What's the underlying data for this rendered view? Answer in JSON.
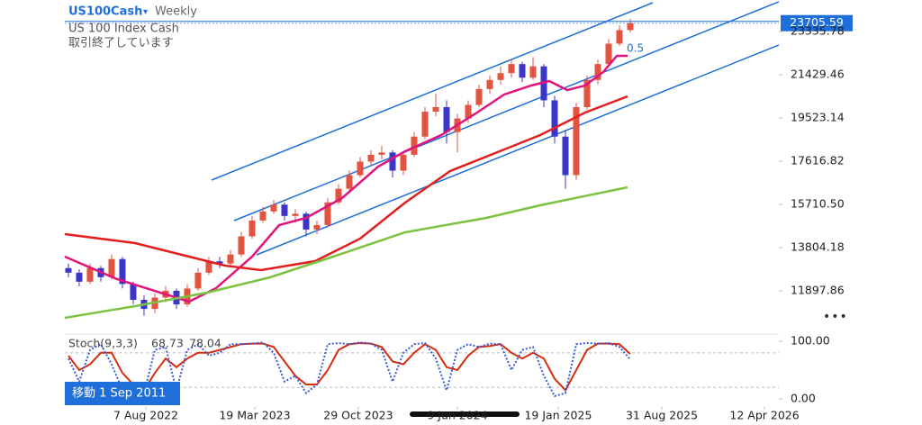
{
  "chart_data": {
    "type": "candlestick",
    "symbol": "US100Cash",
    "interval": "Weekly",
    "subtitle": "US 100 Index Cash",
    "status": "取引終了しています",
    "goto_label": "移動 1 Sep 2011",
    "channel_label": "0.5",
    "up_color": "#e2543f",
    "down_color": "#3b35c8",
    "last_price": 23705.59,
    "last_price_color": "#1e6fd9",
    "xlim": [
      -0.33,
      65.75
    ],
    "xticks": [
      {
        "value": 7.17,
        "label": "7 Aug 2022"
      },
      {
        "value": 17.25,
        "label": "19 Mar 2023"
      },
      {
        "value": 26.83,
        "label": "29 Oct 2023"
      },
      {
        "value": 36,
        "label": "9 Jun 2024"
      },
      {
        "value": 45.33,
        "label": "19 Jan 2025"
      },
      {
        "value": 54.92,
        "label": "31 Aug 2025"
      },
      {
        "value": 64.42,
        "label": "12 Apr 2026"
      }
    ],
    "ylim": [
      10031,
      24726
    ],
    "yticks": [
      11897.86,
      13804.18,
      {
        "value": 15710.5,
        "label": "15710.50"
      },
      17616.82,
      19523.14,
      21429.46,
      23335.78
    ],
    "x": [
      0,
      1,
      2,
      3,
      4,
      5,
      6,
      7,
      8,
      9,
      10,
      11,
      12,
      13,
      14,
      15,
      16,
      17,
      18,
      19,
      20,
      21,
      22,
      23,
      24,
      25,
      26,
      27,
      28,
      29,
      30,
      31,
      32,
      33,
      34,
      35,
      36,
      37,
      38,
      39,
      40,
      41,
      42,
      43,
      44,
      45,
      46,
      47,
      48,
      49,
      50,
      51,
      52
    ],
    "candles": [
      [
        12900,
        13100,
        12500,
        12700
      ],
      [
        12700,
        12850,
        12100,
        12300
      ],
      [
        12300,
        13100,
        12200,
        12900
      ],
      [
        12900,
        13000,
        12300,
        12500
      ],
      [
        12500,
        13500,
        12400,
        13300
      ],
      [
        13300,
        13400,
        12000,
        12200
      ],
      [
        12200,
        12300,
        11300,
        11500
      ],
      [
        11500,
        11700,
        10800,
        11100
      ],
      [
        11100,
        11800,
        10900,
        11600
      ],
      [
        11600,
        12100,
        11400,
        11900
      ],
      [
        11900,
        12000,
        11100,
        11300
      ],
      [
        11300,
        12200,
        11200,
        12000
      ],
      [
        12000,
        12900,
        11900,
        12700
      ],
      [
        12700,
        13400,
        12600,
        13200
      ],
      [
        13200,
        13400,
        12900,
        13100
      ],
      [
        13100,
        13700,
        13000,
        13500
      ],
      [
        13500,
        14500,
        13400,
        14300
      ],
      [
        14300,
        15200,
        14200,
        15000
      ],
      [
        15000,
        15600,
        14900,
        15400
      ],
      [
        15400,
        15900,
        15300,
        15700
      ],
      [
        15700,
        15800,
        15000,
        15200
      ],
      [
        15200,
        15500,
        14900,
        15300
      ],
      [
        15300,
        15400,
        14300,
        14600
      ],
      [
        14600,
        15000,
        14400,
        14800
      ],
      [
        14800,
        16000,
        14700,
        15800
      ],
      [
        15800,
        16600,
        15700,
        16400
      ],
      [
        16400,
        17200,
        16300,
        17000
      ],
      [
        17000,
        17800,
        16900,
        17600
      ],
      [
        17600,
        18100,
        17400,
        17900
      ],
      [
        17900,
        18300,
        17700,
        18000
      ],
      [
        18000,
        18100,
        16900,
        17200
      ],
      [
        17200,
        18000,
        17000,
        17900
      ],
      [
        17900,
        18900,
        17800,
        18700
      ],
      [
        18700,
        20000,
        18600,
        19800
      ],
      [
        19800,
        20600,
        19600,
        20000
      ],
      [
        20000,
        20300,
        18400,
        18900
      ],
      [
        18900,
        19700,
        18000,
        19500
      ],
      [
        19500,
        20300,
        19300,
        20100
      ],
      [
        20100,
        21000,
        20000,
        20800
      ],
      [
        20800,
        21400,
        20600,
        21200
      ],
      [
        21200,
        21800,
        21000,
        21500
      ],
      [
        21500,
        22100,
        21300,
        21900
      ],
      [
        21900,
        22000,
        21100,
        21300
      ],
      [
        21300,
        22200,
        21200,
        21800
      ],
      [
        21800,
        21900,
        20000,
        20300
      ],
      [
        20300,
        20500,
        18400,
        18700
      ],
      [
        18700,
        19000,
        16400,
        17000
      ],
      [
        17000,
        20200,
        16800,
        20000
      ],
      [
        20000,
        21400,
        19900,
        21200
      ],
      [
        21200,
        22100,
        21000,
        21900
      ],
      [
        21900,
        23000,
        21800,
        22800
      ],
      [
        22800,
        23600,
        22700,
        23400
      ],
      [
        23400,
        23900,
        23300,
        23705.59
      ]
    ],
    "moving_averages": [
      {
        "color": "#e0147a",
        "x": [
          -0.33,
          4.5,
          11.17,
          13.67,
          17,
          19.5,
          22,
          25.33,
          28.67,
          31.17,
          34.5,
          37.83,
          40.33,
          42.83,
          44.5,
          46.17,
          47.83,
          49.5,
          50.75,
          51.75
        ],
        "values": [
          13407,
          12414,
          11421,
          12017,
          13407,
          14797,
          15115,
          15988,
          17378,
          18053,
          18768,
          19760,
          20555,
          20952,
          21150,
          20753,
          20952,
          21548,
          22262,
          22262
        ]
      },
      {
        "color": "#e41e1e",
        "x": [
          -0.33,
          6.17,
          11.17,
          14.5,
          17.83,
          22.83,
          27,
          31.17,
          35.33,
          39.5,
          43.67,
          47.83,
          51.75
        ],
        "values": [
          14400,
          14002,
          13406,
          13009,
          12811,
          13208,
          14201,
          15790,
          17180,
          17973,
          18767,
          19760,
          20475
        ]
      },
      {
        "color": "#7cc241",
        "x": [
          -0.33,
          6.17,
          12.83,
          18.67,
          24.5,
          31.17,
          38.67,
          43.67,
          51.75
        ],
        "values": [
          10707,
          11223,
          11818,
          12494,
          13407,
          14479,
          15115,
          15670,
          16464
        ]
      }
    ],
    "stoch": {
      "title": "Stoch(9,3,3)",
      "ylim": [
        -14,
        111
      ],
      "yticks": [
        {
          "value": 100,
          "label": "100.00"
        },
        {
          "value": 0,
          "label": "0.00"
        }
      ],
      "levels": [
        80,
        20
      ],
      "k_color": "#3b5bdb",
      "d_color": "#d62d0f",
      "k": [
        70,
        30,
        85,
        95,
        60,
        15,
        20,
        10,
        85,
        90,
        15,
        85,
        95,
        75,
        80,
        95,
        95,
        96,
        98,
        80,
        30,
        40,
        10,
        25,
        95,
        97,
        95,
        98,
        96,
        85,
        30,
        80,
        95,
        97,
        70,
        15,
        85,
        95,
        90,
        96,
        95,
        50,
        85,
        90,
        40,
        5,
        10,
        95,
        97,
        96,
        97,
        90,
        68.73
      ],
      "d": [
        75,
        50,
        60,
        80,
        80,
        45,
        25,
        15,
        45,
        70,
        55,
        70,
        80,
        80,
        85,
        90,
        95,
        96,
        96,
        90,
        65,
        40,
        25,
        25,
        50,
        85,
        95,
        97,
        96,
        90,
        65,
        60,
        80,
        95,
        85,
        55,
        50,
        75,
        90,
        92,
        95,
        80,
        70,
        80,
        70,
        35,
        15,
        50,
        85,
        96,
        96,
        95,
        78.04
      ]
    }
  }
}
